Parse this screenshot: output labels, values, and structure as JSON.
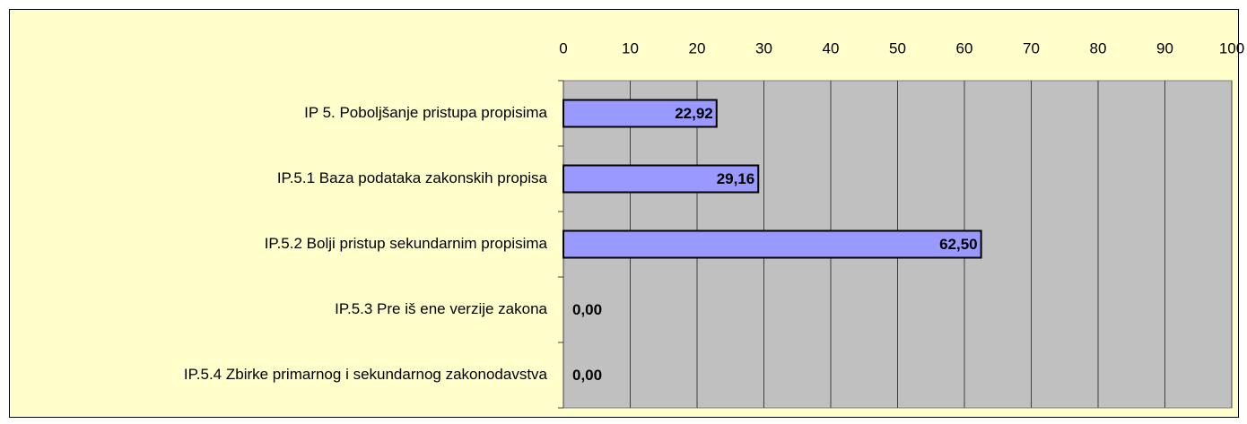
{
  "chart_data": {
    "type": "barh",
    "categories": [
      "IP 5. Poboljšanje pristupa propisima",
      "IP.5.1 Baza podataka zakonskih propisa",
      "IP.5.2 Bolji pristup sekundarnim propisima",
      "IP.5.3 Pre iš ene verzije zakona",
      "IP.5.4 Zbirke primarnog i sekundarnog zakonodavstva"
    ],
    "values": [
      22.92,
      29.16,
      62.5,
      0,
      0
    ],
    "value_labels": [
      "22,92",
      "29,16",
      "62,50",
      "0,00",
      "0,00"
    ],
    "color": "#9999ff",
    "xlim": [
      0,
      100
    ],
    "xticks": [
      0,
      10,
      20,
      30,
      40,
      50,
      60,
      70,
      80,
      90,
      100
    ],
    "grid": true
  }
}
